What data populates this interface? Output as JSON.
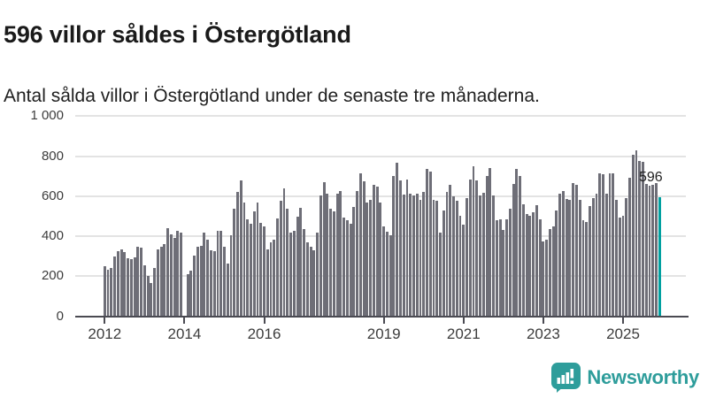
{
  "header": {
    "title": "596 villor såldes i Östergötland",
    "subtitle": "Antal sålda villor i Östergötland under de senaste tre månaderna."
  },
  "chart_data": {
    "type": "bar",
    "title": "596 villor såldes i Östergötland",
    "series_name": "Antal sålda villor (rullande tre månader)",
    "x_start": "2012-01",
    "x_end": "2025-12",
    "x_frequency": "monthly",
    "missing_months": [
      "2014-01"
    ],
    "values": [
      250,
      231,
      241,
      298,
      323,
      333,
      320,
      290,
      283,
      296,
      345,
      341,
      256,
      200,
      164,
      241,
      333,
      348,
      360,
      441,
      409,
      390,
      427,
      416,
      0,
      212,
      227,
      301,
      345,
      352,
      419,
      382,
      330,
      327,
      427,
      427,
      348,
      264,
      404,
      538,
      619,
      678,
      567,
      486,
      464,
      523,
      567,
      467,
      449,
      333,
      367,
      382,
      489,
      575,
      637,
      535,
      419,
      427,
      496,
      541,
      434,
      367,
      345,
      330,
      419,
      604,
      671,
      612,
      535,
      523,
      612,
      627,
      493,
      478,
      464,
      545,
      627,
      715,
      674,
      567,
      582,
      656,
      649,
      567,
      449,
      424,
      404,
      700,
      767,
      677,
      610,
      683,
      612,
      604,
      612,
      582,
      619,
      738,
      723,
      582,
      575,
      419,
      530,
      619,
      656,
      600,
      575,
      502,
      458,
      588,
      684,
      751,
      680,
      603,
      618,
      699,
      739,
      603,
      480,
      484,
      432,
      484,
      539,
      662,
      736,
      699,
      561,
      509,
      502,
      518,
      554,
      484,
      375,
      382,
      434,
      449,
      530,
      612,
      627,
      585,
      582,
      664,
      656,
      582,
      478,
      471,
      552,
      590,
      612,
      715,
      708,
      612,
      715,
      714,
      583,
      492,
      504,
      592,
      692,
      806,
      830,
      776,
      773,
      662,
      653,
      656,
      666,
      596
    ],
    "highlight": {
      "index": 167,
      "value": 596,
      "label": "596"
    },
    "ylim": [
      0,
      1000
    ],
    "y_ticks": [
      0,
      200,
      400,
      600,
      800,
      1000
    ],
    "y_tick_labels": [
      "0",
      "200",
      "400",
      "600",
      "800",
      "1 000"
    ],
    "x_tick_years": [
      2012,
      2014,
      2016,
      2019,
      2021,
      2023,
      2025
    ],
    "grid": "horizontal",
    "legend": "none"
  },
  "annotation": {
    "last_value_label": "596"
  },
  "colors": {
    "bar": "#6e6e77",
    "accent": "#00a0a0",
    "grid": "#e3e3e3",
    "axis": "#4a4a52",
    "text": "#1a1a1a",
    "tick_text": "#3d3d3d",
    "brand": "#2e9d9b"
  },
  "footer": {
    "brand": "Newsworthy"
  }
}
